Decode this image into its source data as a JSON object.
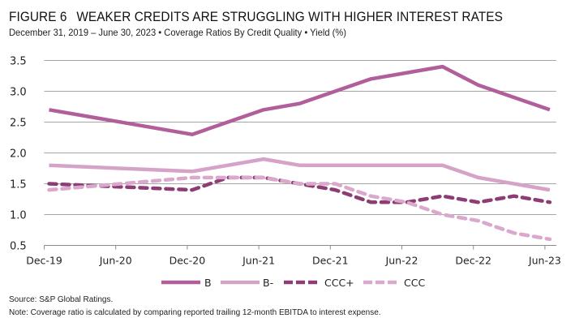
{
  "header": {
    "figure_number": "FIGURE 6",
    "title": "WEAKER CREDITS ARE STRUGGLING WITH HIGHER INTEREST RATES",
    "subtitle": "December 31, 2019 – June 30, 2023 • Coverage Ratios By Credit Quality • Yield (%)"
  },
  "chart_data": {
    "type": "line",
    "title": "WEAKER CREDITS ARE STRUGGLING WITH HIGHER INTEREST RATES",
    "subtitle": "December 31, 2019 – June 30, 2023 • Coverage Ratios By Credit Quality • Yield (%)",
    "xlabel": "",
    "ylabel": "",
    "categories": [
      "Dec-19",
      "Jun-20",
      "Dec-20",
      "Jun-21",
      "Dec-21",
      "Jun-22",
      "Dec-22",
      "Jun-23"
    ],
    "ylim": [
      0.5,
      3.5
    ],
    "yticks": [
      "3.5",
      "3.0",
      "2.5",
      "2.0",
      "1.5",
      "1.0",
      "0.5"
    ],
    "ytick_values": [
      3.5,
      3.0,
      2.5,
      2.0,
      1.5,
      1.0,
      0.5
    ],
    "grid": true,
    "legend_position": "bottom",
    "x_note": "x values are in half-year units from Dec-19 (0) to Jun-23 (7); quarter points fall at .5",
    "series": [
      {
        "name": "B",
        "style": "solid",
        "color": "#b15e9b",
        "x": [
          0,
          2,
          3,
          3.5,
          4.5,
          5.5,
          6,
          7
        ],
        "values": [
          2.7,
          2.3,
          2.7,
          2.8,
          3.2,
          3.4,
          3.1,
          2.7
        ]
      },
      {
        "name": "B-",
        "style": "solid",
        "color": "#d5a3c7",
        "x": [
          0,
          2,
          3,
          3.5,
          4.5,
          5.5,
          6,
          7
        ],
        "values": [
          1.8,
          1.7,
          1.9,
          1.8,
          1.8,
          1.8,
          1.6,
          1.4
        ]
      },
      {
        "name": "CCC+",
        "style": "dashed",
        "color": "#8c3d74",
        "x": [
          0,
          2,
          2.5,
          3,
          3.5,
          4,
          4.5,
          5,
          5.5,
          6,
          6.5,
          7
        ],
        "values": [
          1.5,
          1.4,
          1.6,
          1.6,
          1.5,
          1.4,
          1.2,
          1.2,
          1.3,
          1.2,
          1.3,
          1.2
        ]
      },
      {
        "name": "CCC",
        "style": "dashed",
        "color": "#dba8cd",
        "x": [
          0,
          2,
          3,
          3.5,
          4,
          4.5,
          5,
          5.5,
          6,
          6.5,
          7
        ],
        "values": [
          1.4,
          1.6,
          1.6,
          1.5,
          1.5,
          1.3,
          1.2,
          1.0,
          0.9,
          0.7,
          0.6
        ]
      }
    ]
  },
  "footer": {
    "source": "Source: S&P Global Ratings.",
    "note": "Note: Coverage ratio is calculated by comparing reported trailing 12-month EBITDA to interest expense."
  }
}
